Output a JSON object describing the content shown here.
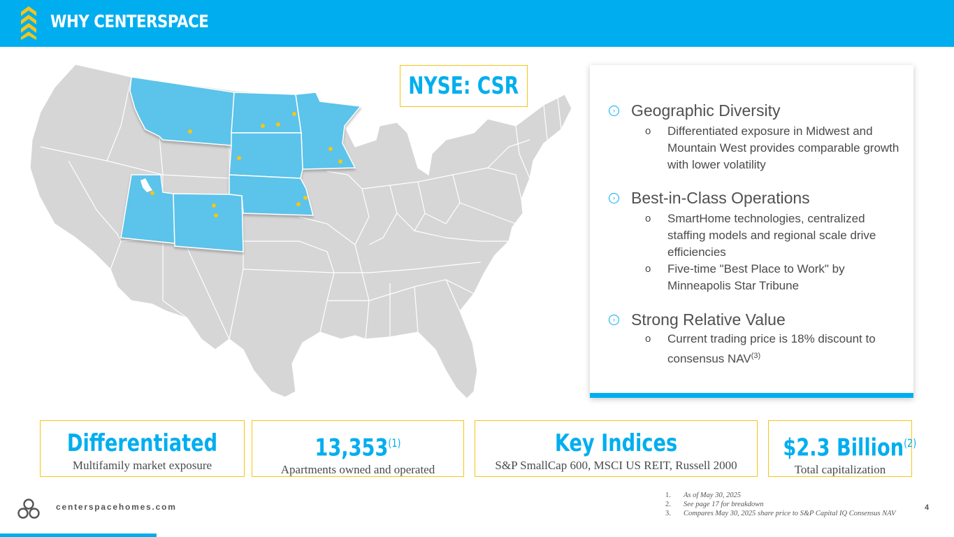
{
  "header": {
    "title": "WHY CENTERSPACE",
    "accent_color": "#00aeef",
    "logo_color": "#f5c518"
  },
  "ticker": {
    "label": "NYSE: CSR"
  },
  "map": {
    "highlight_color": "#5bc3ea",
    "base_color": "#d6d6d6",
    "marker_color": "#f5c518",
    "highlighted_states": [
      "Montana",
      "North Dakota",
      "Minnesota",
      "South Dakota",
      "Nebraska",
      "Utah",
      "Colorado"
    ]
  },
  "panel": {
    "sections": [
      {
        "heading": "Geographic Diversity",
        "items": [
          {
            "text": "Differentiated exposure in Midwest and Mountain West provides comparable growth with lower volatility",
            "sup": ""
          }
        ]
      },
      {
        "heading": "Best-in-Class Operations",
        "items": [
          {
            "text": "SmartHome technologies, centralized staffing models and regional scale drive efficiencies",
            "sup": ""
          },
          {
            "text": "Five-time \"Best Place to Work\" by Minneapolis Star Tribune",
            "sup": ""
          }
        ]
      },
      {
        "heading": "Strong Relative Value",
        "items": [
          {
            "text": "Current trading price is 18% discount to consensus NAV",
            "sup": "(3)"
          }
        ]
      }
    ],
    "sub_marker": "o"
  },
  "stats": [
    {
      "big": "Differentiated",
      "sup": "",
      "small": "Multifamily market exposure"
    },
    {
      "big": "13,353",
      "sup": "(1)",
      "small": "Apartments owned and operated"
    },
    {
      "big": "Key Indices",
      "sup": "",
      "small": "S&P SmallCap 600, MSCI US REIT, Russell 2000"
    },
    {
      "big": "$2.3 Billion",
      "sup": "(2)",
      "small": "Total capitalization"
    }
  ],
  "footer": {
    "url": "centerspacehomes.com",
    "page": "4",
    "footnotes": [
      {
        "num": "1.",
        "text": "As of May 30, 2025"
      },
      {
        "num": "2.",
        "text": "See page 17 for breakdown"
      },
      {
        "num": "3.",
        "text": "Compares May 30, 2025 share price to S&P Capital IQ Consensus NAV"
      }
    ]
  }
}
